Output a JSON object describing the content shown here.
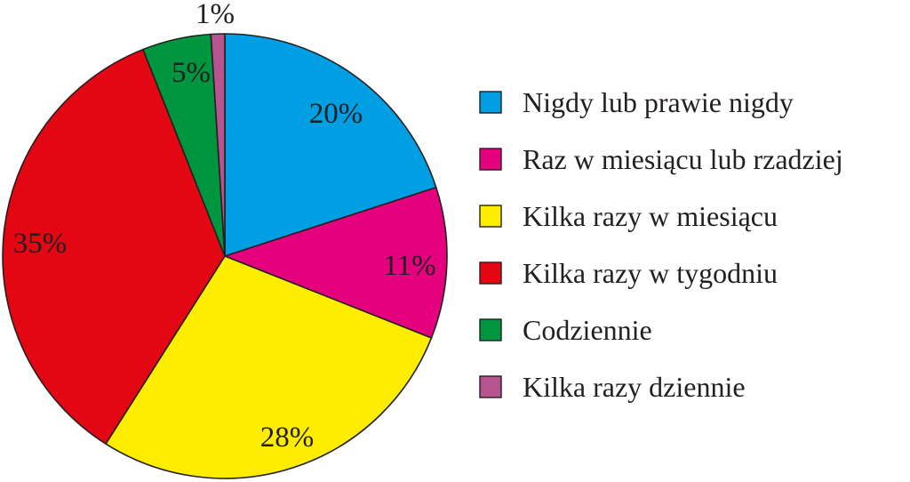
{
  "chart_data": {
    "type": "pie",
    "title": "",
    "legend_position": "right",
    "slices": [
      {
        "label": "Nigdy lub prawie nigdy",
        "value": 20,
        "display": "20%",
        "color": "#009fe3"
      },
      {
        "label": "Raz w miesiącu lub rzadziej",
        "value": 11,
        "display": "11%",
        "color": "#e5007e"
      },
      {
        "label": "Kilka razy w miesiącu",
        "value": 28,
        "display": "28%",
        "color": "#ffed00"
      },
      {
        "label": "Kilka razy w tygodniu",
        "value": 35,
        "display": "35%",
        "color": "#e30613"
      },
      {
        "label": "Codziennie",
        "value": 5,
        "display": "5%",
        "color": "#009640"
      },
      {
        "label": "Kilka razy dziennie",
        "value": 1,
        "display": "1%",
        "color": "#b5548e"
      }
    ]
  }
}
